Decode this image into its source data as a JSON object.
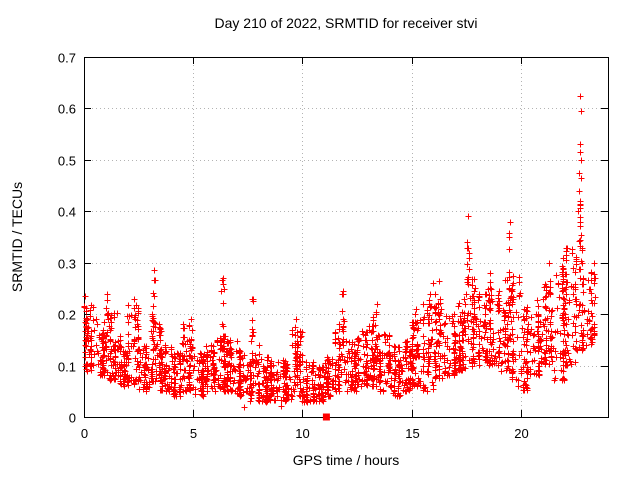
{
  "title": "Day 210 of 2022, SRMTID for receiver stvi",
  "chart_data": {
    "type": "scatter",
    "title": "Day 210 of 2022, SRMTID for receiver stvi",
    "xlabel": "GPS time / hours",
    "ylabel": "SRMTID / TECUs",
    "xlim": [
      0,
      24
    ],
    "ylim": [
      0,
      0.7
    ],
    "xticks": {
      "values": [
        0,
        5,
        10,
        15,
        20
      ],
      "labels": [
        "0",
        "5",
        "10",
        "15",
        "20"
      ]
    },
    "yticks": {
      "values": [
        0,
        0.1,
        0.2,
        0.3,
        0.4,
        0.5,
        0.6,
        0.7
      ],
      "labels": [
        "0",
        "0.1",
        "0.2",
        "0.3",
        "0.4",
        "0.5",
        "0.6",
        "0.7"
      ]
    },
    "grid": true,
    "legend": "none",
    "marker": "plus",
    "x_data_end": 23.4,
    "colors": {
      "points": "#ff0000",
      "special": "#ff0000",
      "grid": "#b3b3b3",
      "axis": "#000000",
      "background": "#ffffff"
    },
    "density_bands_format": "[hour_start, y_min, y_max, n_points] per 0.5 h bin (last bin 0.4 h wide)",
    "density_bands": [
      [
        0.0,
        0.09,
        0.23,
        50
      ],
      [
        0.5,
        0.08,
        0.19,
        52
      ],
      [
        1.0,
        0.07,
        0.21,
        52
      ],
      [
        1.5,
        0.06,
        0.16,
        52
      ],
      [
        2.0,
        0.06,
        0.22,
        52
      ],
      [
        2.5,
        0.05,
        0.14,
        52
      ],
      [
        3.0,
        0.07,
        0.2,
        50
      ],
      [
        3.5,
        0.05,
        0.14,
        52
      ],
      [
        4.0,
        0.04,
        0.13,
        52
      ],
      [
        4.5,
        0.05,
        0.18,
        52
      ],
      [
        5.0,
        0.04,
        0.13,
        52
      ],
      [
        5.5,
        0.05,
        0.14,
        52
      ],
      [
        6.0,
        0.05,
        0.16,
        50
      ],
      [
        6.5,
        0.05,
        0.15,
        52
      ],
      [
        7.0,
        0.04,
        0.13,
        52
      ],
      [
        7.5,
        0.03,
        0.15,
        50
      ],
      [
        8.0,
        0.03,
        0.12,
        52
      ],
      [
        8.5,
        0.03,
        0.11,
        52
      ],
      [
        9.0,
        0.03,
        0.12,
        52
      ],
      [
        9.5,
        0.04,
        0.17,
        50
      ],
      [
        10.0,
        0.03,
        0.11,
        52
      ],
      [
        10.5,
        0.03,
        0.1,
        52
      ],
      [
        11.0,
        0.04,
        0.12,
        52
      ],
      [
        11.5,
        0.05,
        0.19,
        50
      ],
      [
        12.0,
        0.05,
        0.15,
        52
      ],
      [
        12.5,
        0.06,
        0.17,
        52
      ],
      [
        13.0,
        0.06,
        0.2,
        50
      ],
      [
        13.5,
        0.05,
        0.17,
        52
      ],
      [
        14.0,
        0.04,
        0.14,
        52
      ],
      [
        14.5,
        0.05,
        0.15,
        52
      ],
      [
        15.0,
        0.06,
        0.19,
        50
      ],
      [
        15.5,
        0.05,
        0.22,
        50
      ],
      [
        16.0,
        0.07,
        0.24,
        50
      ],
      [
        16.5,
        0.08,
        0.2,
        52
      ],
      [
        17.0,
        0.09,
        0.23,
        52
      ],
      [
        17.5,
        0.1,
        0.27,
        48
      ],
      [
        18.0,
        0.1,
        0.24,
        52
      ],
      [
        18.5,
        0.1,
        0.26,
        52
      ],
      [
        19.0,
        0.09,
        0.27,
        52
      ],
      [
        19.5,
        0.06,
        0.28,
        48
      ],
      [
        20.0,
        0.05,
        0.22,
        52
      ],
      [
        20.5,
        0.08,
        0.23,
        52
      ],
      [
        21.0,
        0.1,
        0.26,
        52
      ],
      [
        21.5,
        0.07,
        0.3,
        50
      ],
      [
        22.0,
        0.1,
        0.33,
        50
      ],
      [
        22.5,
        0.13,
        0.33,
        48
      ],
      [
        23.0,
        0.14,
        0.31,
        40,
        0.4
      ]
    ],
    "spike_clusters_format": "[hour, y_low, y_high, n_points] narrow vertical clusters",
    "spike_clusters": [
      [
        0.05,
        0.15,
        0.235,
        8
      ],
      [
        1.05,
        0.14,
        0.24,
        8
      ],
      [
        2.3,
        0.13,
        0.23,
        8
      ],
      [
        3.2,
        0.13,
        0.285,
        12
      ],
      [
        4.9,
        0.11,
        0.19,
        8
      ],
      [
        6.35,
        0.12,
        0.27,
        12
      ],
      [
        7.7,
        0.1,
        0.23,
        10
      ],
      [
        9.7,
        0.08,
        0.19,
        10
      ],
      [
        11.85,
        0.1,
        0.245,
        8
      ],
      [
        13.4,
        0.1,
        0.22,
        10
      ],
      [
        15.2,
        0.1,
        0.21,
        8
      ],
      [
        15.85,
        0.1,
        0.24,
        8
      ],
      [
        16.25,
        0.12,
        0.265,
        10
      ],
      [
        17.6,
        0.18,
        0.39,
        16
      ],
      [
        18.6,
        0.15,
        0.28,
        8
      ],
      [
        19.5,
        0.15,
        0.38,
        14
      ],
      [
        21.3,
        0.15,
        0.3,
        8
      ],
      [
        21.95,
        0.15,
        0.31,
        10
      ],
      [
        22.7,
        0.2,
        0.42,
        14
      ]
    ],
    "outlier_points": [
      [
        22.74,
        0.625
      ],
      [
        22.77,
        0.595
      ],
      [
        22.73,
        0.53
      ],
      [
        22.7,
        0.515
      ],
      [
        22.75,
        0.5
      ],
      [
        22.69,
        0.475
      ],
      [
        22.76,
        0.465
      ],
      [
        22.68,
        0.44
      ],
      [
        22.72,
        0.415
      ],
      [
        22.64,
        0.4
      ],
      [
        11.85,
        0.24
      ],
      [
        16.0,
        0.26
      ],
      [
        7.35,
        0.02
      ],
      [
        9.0,
        0.022
      ],
      [
        10.2,
        0.03
      ]
    ],
    "special_points": [
      {
        "x": 11.1,
        "y": 0,
        "marker": "filled-square"
      }
    ]
  }
}
